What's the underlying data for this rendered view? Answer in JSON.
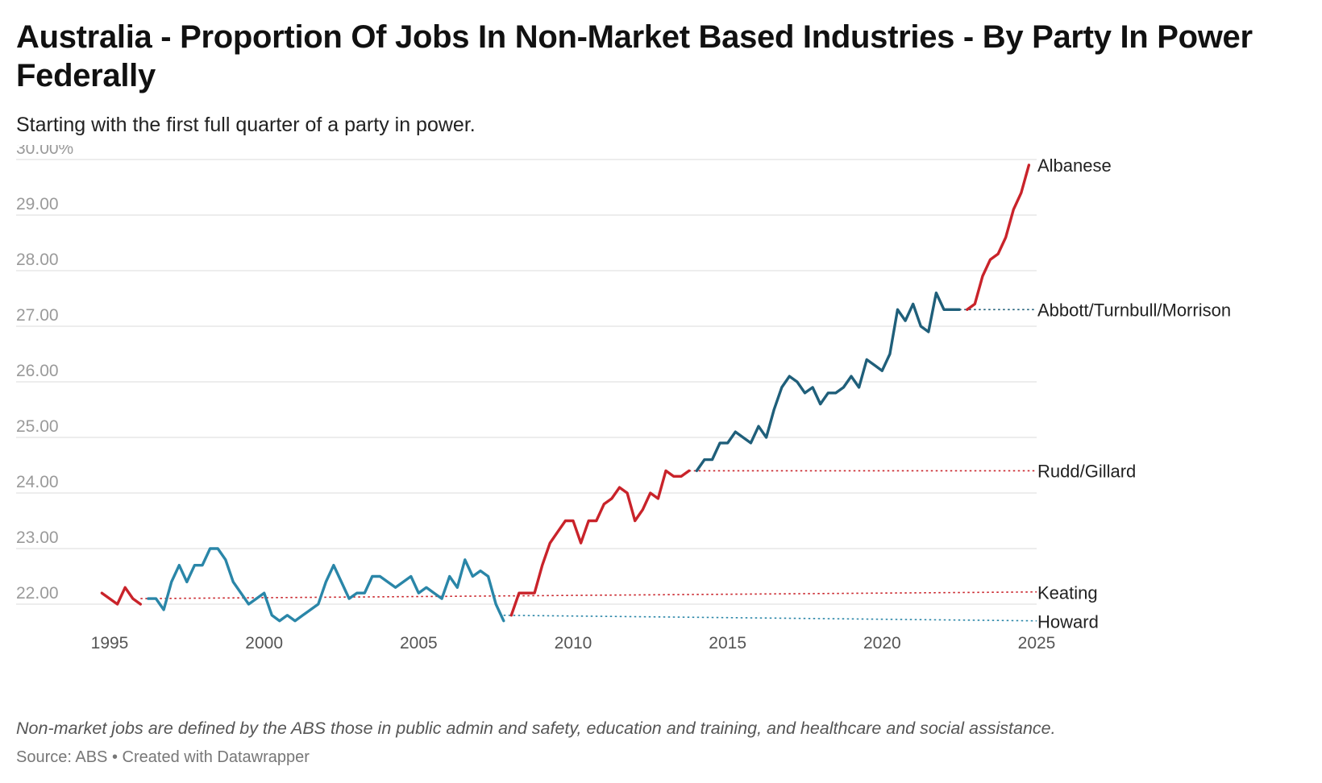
{
  "title": "Australia - Proportion Of Jobs In Non-Market Based Industries - By Party In Power Federally",
  "subtitle": "Starting with the first full quarter of a party in power.",
  "notes": "Non-market jobs are defined by the ABS those in public admin and safety, education and training, and healthcare and social assistance.",
  "source": {
    "label": "Source: ABS",
    "separator": "•",
    "credit": "Created with Datawrapper"
  },
  "colors": {
    "labor": "#c9232a",
    "coalition_howard": "#2a86a8",
    "coalition_atm": "#1f5f7a",
    "grid": "#e2e2e2",
    "tick_text": "#9a9a9a",
    "label_text": "#222222"
  },
  "chart_data": {
    "type": "line",
    "title": "Australia - Proportion Of Jobs In Non-Market Based Industries - By Party In Power Federally",
    "subtitle": "Starting with the first full quarter of a party in power.",
    "xlabel": "",
    "ylabel": "",
    "xlim": [
      1994.5,
      2025
    ],
    "ylim": [
      21.6,
      30.1
    ],
    "x_ticks": [
      1995,
      2000,
      2005,
      2010,
      2015,
      2020,
      2025
    ],
    "x_tick_labels": [
      "1995",
      "2000",
      "2005",
      "2010",
      "2015",
      "2020",
      "2025"
    ],
    "y_ticks": [
      22,
      23,
      24,
      25,
      26,
      27,
      28,
      29,
      30
    ],
    "y_tick_labels": [
      "22.00",
      "23.00",
      "24.00",
      "25.00",
      "26.00",
      "27.00",
      "28.00",
      "29.00",
      "30.00%"
    ],
    "grid": true,
    "legend": "none (series labels at right end)",
    "series": [
      {
        "name": "Keating",
        "color": "#c9232a",
        "x": [
          1994.75,
          1995.0,
          1995.25,
          1995.5,
          1995.75,
          1996.0
        ],
        "y": [
          22.2,
          22.1,
          22.0,
          22.3,
          22.1,
          22.0
        ]
      },
      {
        "name": "Howard",
        "color": "#2a86a8",
        "x": [
          1996.25,
          1996.5,
          1996.75,
          1997.0,
          1997.25,
          1997.5,
          1997.75,
          1998.0,
          1998.25,
          1998.5,
          1998.75,
          1999.0,
          1999.25,
          1999.5,
          1999.75,
          2000.0,
          2000.25,
          2000.5,
          2000.75,
          2001.0,
          2001.25,
          2001.5,
          2001.75,
          2002.0,
          2002.25,
          2002.5,
          2002.75,
          2003.0,
          2003.25,
          2003.5,
          2003.75,
          2004.0,
          2004.25,
          2004.5,
          2004.75,
          2005.0,
          2005.25,
          2005.5,
          2005.75,
          2006.0,
          2006.25,
          2006.5,
          2006.75,
          2007.0,
          2007.25,
          2007.5,
          2007.75
        ],
        "y": [
          22.1,
          22.1,
          21.9,
          22.4,
          22.7,
          22.4,
          22.7,
          22.7,
          23.0,
          23.0,
          22.8,
          22.4,
          22.2,
          22.0,
          22.1,
          22.2,
          21.8,
          21.7,
          21.8,
          21.7,
          21.8,
          21.9,
          22.0,
          22.4,
          22.7,
          22.4,
          22.1,
          22.2,
          22.2,
          22.5,
          22.5,
          22.4,
          22.3,
          22.4,
          22.5,
          22.2,
          22.3,
          22.2,
          22.1,
          22.5,
          22.3,
          22.8,
          22.5,
          22.6,
          22.5,
          22.0,
          21.7
        ]
      },
      {
        "name": "Rudd/Gillard",
        "color": "#c9232a",
        "x": [
          2008.0,
          2008.25,
          2008.5,
          2008.75,
          2009.0,
          2009.25,
          2009.5,
          2009.75,
          2010.0,
          2010.25,
          2010.5,
          2010.75,
          2011.0,
          2011.25,
          2011.5,
          2011.75,
          2012.0,
          2012.25,
          2012.5,
          2012.75,
          2013.0,
          2013.25,
          2013.5,
          2013.75
        ],
        "y": [
          21.8,
          22.2,
          22.2,
          22.2,
          22.7,
          23.1,
          23.3,
          23.5,
          23.5,
          23.1,
          23.5,
          23.5,
          23.8,
          23.9,
          24.1,
          24.0,
          23.5,
          23.7,
          24.0,
          23.9,
          24.4,
          24.3,
          24.3,
          24.4
        ]
      },
      {
        "name": "Abbott/Turnbull/Morrison",
        "color": "#1f5f7a",
        "x": [
          2014.0,
          2014.25,
          2014.5,
          2014.75,
          2015.0,
          2015.25,
          2015.5,
          2015.75,
          2016.0,
          2016.25,
          2016.5,
          2016.75,
          2017.0,
          2017.25,
          2017.5,
          2017.75,
          2018.0,
          2018.25,
          2018.5,
          2018.75,
          2019.0,
          2019.25,
          2019.5,
          2019.75,
          2020.0,
          2020.25,
          2020.5,
          2020.75,
          2021.0,
          2021.25,
          2021.5,
          2021.75,
          2022.0,
          2022.25,
          2022.5
        ],
        "y": [
          24.4,
          24.6,
          24.6,
          24.9,
          24.9,
          25.1,
          25.0,
          24.9,
          25.2,
          25.0,
          25.5,
          25.9,
          26.1,
          26.0,
          25.8,
          25.9,
          25.6,
          25.8,
          25.8,
          25.9,
          26.1,
          25.9,
          26.4,
          26.3,
          26.2,
          26.5,
          27.3,
          27.1,
          27.4,
          27.0,
          26.9,
          27.6,
          27.3,
          27.3,
          27.3
        ]
      },
      {
        "name": "Albanese",
        "color": "#c9232a",
        "x": [
          2022.75,
          2023.0,
          2023.25,
          2023.5,
          2023.75,
          2024.0,
          2024.25,
          2024.5,
          2024.75
        ],
        "y": [
          27.3,
          27.4,
          27.9,
          28.2,
          28.3,
          28.6,
          29.1,
          29.4,
          29.9
        ]
      }
    ],
    "reference_lines": [
      {
        "name": "Keating",
        "color": "#c9232a",
        "x1": 1996.0,
        "y1": 22.1,
        "x2": 2025.0,
        "y2": 22.22
      },
      {
        "name": "Howard",
        "color": "#2a86a8",
        "x1": 2007.75,
        "y1": 21.8,
        "x2": 2025.0,
        "y2": 21.7
      },
      {
        "name": "Rudd/Gillard",
        "color": "#c9232a",
        "x1": 2013.75,
        "y1": 24.4,
        "x2": 2025.0,
        "y2": 24.4
      },
      {
        "name": "Abbott/Turnbull/Morrison",
        "color": "#1f5f7a",
        "x1": 2022.5,
        "y1": 27.3,
        "x2": 2025.0,
        "y2": 27.3
      }
    ],
    "end_labels": [
      {
        "text": "Albanese",
        "y": 29.9
      },
      {
        "text": "Abbott/Turnbull/Morrison",
        "y": 27.3
      },
      {
        "text": "Rudd/Gillard",
        "y": 24.4
      },
      {
        "text": "Keating",
        "y": 22.21
      },
      {
        "text": "Howard",
        "y": 21.69
      }
    ]
  }
}
